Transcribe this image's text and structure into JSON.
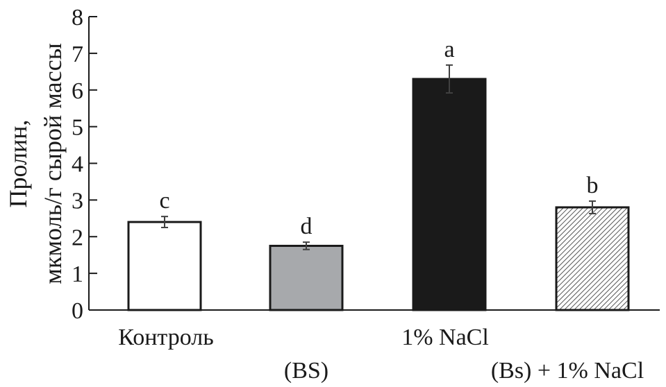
{
  "chart_data": {
    "type": "bar",
    "ylabel_line1": "Пролин,",
    "ylabel_line2": "мкмоль/г сырой массы",
    "xlabel": "",
    "ylim": [
      0,
      8
    ],
    "yticks": [
      0,
      1,
      2,
      3,
      4,
      5,
      6,
      7,
      8
    ],
    "yticks_labels": [
      "0",
      "1",
      "2",
      "3",
      "4",
      "5",
      "6",
      "7",
      "8"
    ],
    "categories": [
      "Контроль",
      "(BS)",
      "1% NaCl",
      "(Bs) + 1% NaCl"
    ],
    "values": [
      2.4,
      1.75,
      6.3,
      2.8
    ],
    "errors": [
      0.15,
      0.1,
      0.38,
      0.17
    ],
    "significance": [
      "c",
      "d",
      "a",
      "b"
    ],
    "fills": [
      "#ffffff",
      "#a7a9ac",
      "#1a1a1a",
      "hatch"
    ],
    "grid": false,
    "legend": "none"
  }
}
